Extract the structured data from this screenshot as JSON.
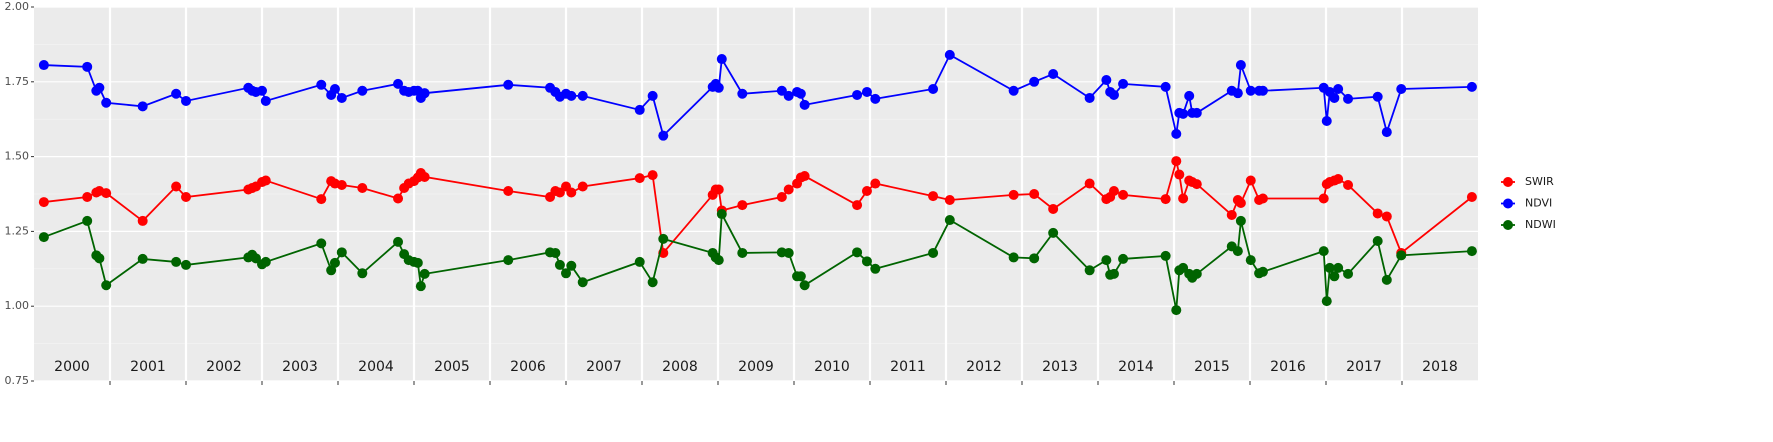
{
  "chart_data": {
    "type": "line",
    "x": [
      2000.13,
      2000.7,
      2000.82,
      2000.86,
      2000.95,
      2001.43,
      2001.87,
      2002.0,
      2002.82,
      2002.87,
      2002.92,
      2003.0,
      2003.05,
      2003.78,
      2003.91,
      2003.96,
      2004.05,
      2004.32,
      2004.79,
      2004.87,
      2004.93,
      2005.0,
      2005.05,
      2005.09,
      2005.14,
      2006.24,
      2006.79,
      2006.86,
      2006.92,
      2007.0,
      2007.07,
      2007.22,
      2007.97,
      2008.14,
      2008.28,
      2008.93,
      2008.97,
      2009.01,
      2009.05,
      2009.32,
      2009.84,
      2009.93,
      2010.04,
      2010.09,
      2010.14,
      2010.83,
      2010.96,
      2011.07,
      2011.83,
      2012.05,
      2012.89,
      2013.16,
      2013.41,
      2013.89,
      2014.11,
      2014.16,
      2014.21,
      2014.33,
      2014.89,
      2015.03,
      2015.07,
      2015.12,
      2015.2,
      2015.24,
      2015.3,
      2015.76,
      2015.84,
      2015.88,
      2016.01,
      2016.12,
      2016.17,
      2016.97,
      2017.01,
      2017.05,
      2017.11,
      2017.16,
      2017.29,
      2017.68,
      2017.8,
      2017.99,
      2018.92
    ],
    "series": [
      {
        "name": "SWIR",
        "color": "#ff0000",
        "values": [
          1.348,
          1.365,
          1.38,
          1.385,
          1.378,
          1.285,
          1.4,
          1.365,
          1.39,
          1.395,
          1.4,
          1.415,
          1.42,
          1.358,
          1.418,
          1.41,
          1.405,
          1.395,
          1.36,
          1.395,
          1.41,
          1.418,
          1.43,
          1.445,
          1.432,
          1.385,
          1.365,
          1.385,
          1.38,
          1.4,
          1.38,
          1.4,
          1.428,
          1.438,
          1.178,
          1.372,
          1.39,
          1.39,
          1.32,
          1.338,
          1.365,
          1.39,
          1.41,
          1.43,
          1.435,
          1.338,
          1.385,
          1.41,
          1.368,
          1.355,
          1.372,
          1.375,
          1.325,
          1.41,
          1.358,
          1.365,
          1.385,
          1.372,
          1.358,
          1.485,
          1.44,
          1.36,
          1.42,
          1.415,
          1.408,
          1.305,
          1.355,
          1.345,
          1.42,
          1.355,
          1.36,
          1.36,
          1.408,
          1.415,
          1.42,
          1.425,
          1.405,
          1.31,
          1.3,
          1.178,
          1.365
        ]
      },
      {
        "name": "NDVI",
        "color": "#0000ff",
        "values": [
          1.806,
          1.8,
          1.72,
          1.73,
          1.68,
          1.668,
          1.71,
          1.686,
          1.73,
          1.72,
          1.716,
          1.72,
          1.686,
          1.74,
          1.706,
          1.726,
          1.696,
          1.72,
          1.743,
          1.72,
          1.716,
          1.72,
          1.72,
          1.696,
          1.712,
          1.74,
          1.73,
          1.716,
          1.7,
          1.71,
          1.703,
          1.703,
          1.656,
          1.703,
          1.57,
          1.733,
          1.743,
          1.73,
          1.826,
          1.71,
          1.72,
          1.703,
          1.716,
          1.71,
          1.673,
          1.706,
          1.716,
          1.693,
          1.726,
          1.84,
          1.72,
          1.75,
          1.776,
          1.696,
          1.756,
          1.716,
          1.706,
          1.743,
          1.733,
          1.576,
          1.646,
          1.643,
          1.703,
          1.646,
          1.646,
          1.72,
          1.712,
          1.806,
          1.72,
          1.72,
          1.72,
          1.73,
          1.619,
          1.716,
          1.696,
          1.726,
          1.693,
          1.7,
          1.582,
          1.726,
          1.733
        ]
      },
      {
        "name": "NDWI",
        "color": "#006400",
        "values": [
          1.231,
          1.285,
          1.17,
          1.16,
          1.07,
          1.158,
          1.148,
          1.138,
          1.163,
          1.172,
          1.16,
          1.14,
          1.148,
          1.21,
          1.12,
          1.145,
          1.18,
          1.11,
          1.215,
          1.174,
          1.154,
          1.148,
          1.145,
          1.067,
          1.108,
          1.154,
          1.18,
          1.178,
          1.138,
          1.11,
          1.135,
          1.08,
          1.148,
          1.08,
          1.225,
          1.178,
          1.163,
          1.154,
          1.308,
          1.178,
          1.18,
          1.178,
          1.1,
          1.1,
          1.07,
          1.18,
          1.15,
          1.125,
          1.178,
          1.288,
          1.163,
          1.16,
          1.245,
          1.12,
          1.154,
          1.105,
          1.108,
          1.158,
          1.168,
          0.987,
          1.12,
          1.128,
          1.108,
          1.095,
          1.108,
          1.2,
          1.184,
          1.285,
          1.154,
          1.11,
          1.115,
          1.184,
          1.017,
          1.128,
          1.1,
          1.128,
          1.108,
          1.218,
          1.088,
          1.17,
          1.184
        ]
      }
    ],
    "xlim": [
      2000,
      2019
    ],
    "xticks": [
      {
        "value": 2000.5,
        "label": "2000"
      },
      {
        "value": 2001.5,
        "label": "2001"
      },
      {
        "value": 2002.5,
        "label": "2002"
      },
      {
        "value": 2003.5,
        "label": "2003"
      },
      {
        "value": 2004.5,
        "label": "2004"
      },
      {
        "value": 2005.5,
        "label": "2005"
      },
      {
        "value": 2006.5,
        "label": "2006"
      },
      {
        "value": 2007.5,
        "label": "2007"
      },
      {
        "value": 2008.5,
        "label": "2008"
      },
      {
        "value": 2009.5,
        "label": "2009"
      },
      {
        "value": 2010.5,
        "label": "2010"
      },
      {
        "value": 2011.5,
        "label": "2011"
      },
      {
        "value": 2012.5,
        "label": "2012"
      },
      {
        "value": 2013.5,
        "label": "2013"
      },
      {
        "value": 2014.5,
        "label": "2014"
      },
      {
        "value": 2015.5,
        "label": "2015"
      },
      {
        "value": 2016.5,
        "label": "2016"
      },
      {
        "value": 2017.5,
        "label": "2017"
      },
      {
        "value": 2018.5,
        "label": "2018"
      }
    ],
    "year_breaks": [
      2001,
      2002,
      2003,
      2004,
      2005,
      2006,
      2007,
      2008,
      2009,
      2010,
      2011,
      2012,
      2013,
      2014,
      2015,
      2016,
      2017,
      2018
    ],
    "ylim": [
      0.75,
      2.0
    ],
    "yticks": [
      {
        "value": 0.75,
        "label": "0.75"
      },
      {
        "value": 1.0,
        "label": "1.00"
      },
      {
        "value": 1.25,
        "label": "1.25"
      },
      {
        "value": 1.5,
        "label": "1.50"
      },
      {
        "value": 1.75,
        "label": "1.75"
      },
      {
        "value": 2.0,
        "label": "2.00"
      }
    ],
    "grid": true,
    "legend": "right"
  }
}
